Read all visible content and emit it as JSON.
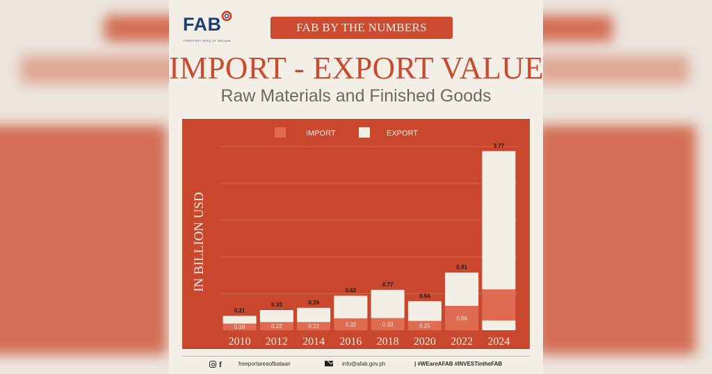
{
  "header": {
    "logo_text": "FAB",
    "logo_subtext": "FREEPORT AREA OF BATAAN",
    "banner": "FAB BY THE NUMBERS",
    "title": "IMPORT - EXPORT VALUE",
    "subtitle": "Raw Materials and Finished Goods"
  },
  "colors": {
    "import": "#e06b53",
    "export": "#f4efe6",
    "panel": "#c9472c",
    "accent": "#cd4b30"
  },
  "chart_data": {
    "type": "bar",
    "stacked": true,
    "categories": [
      "2010",
      "2012",
      "2014",
      "2016",
      "2018",
      "2020",
      "2022",
      "2024"
    ],
    "series": [
      {
        "name": "IMPORT",
        "values": [
          0.18,
          0.22,
          0.22,
          0.32,
          0.33,
          0.25,
          0.66,
          1.11
        ]
      },
      {
        "name": "EXPORT",
        "values": [
          0.21,
          0.33,
          0.39,
          0.62,
          0.77,
          0.54,
          0.91,
          3.77
        ]
      }
    ],
    "ylabel": "IN BILLION USD",
    "ylim": [
      0,
      5
    ],
    "grid": true,
    "legend": "top"
  },
  "footer": {
    "social_handle": "freeportareaofbataan",
    "email": "info@afab.gov.ph",
    "hashtags": "| #WEareAFAB #INVESTintheFAB"
  }
}
